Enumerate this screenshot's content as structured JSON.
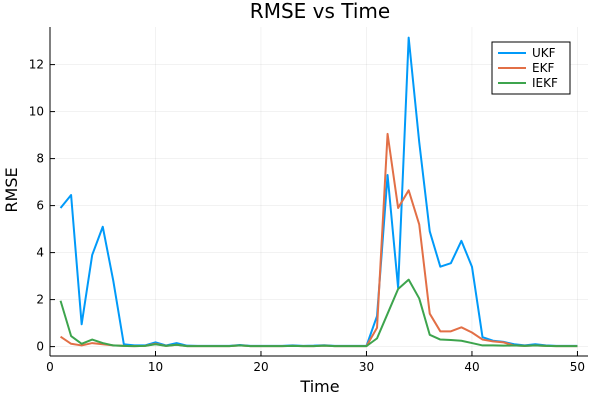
{
  "chart_data": {
    "type": "line",
    "title": "RMSE vs Time",
    "xlabel": "Time",
    "ylabel": "RMSE",
    "xlim": [
      0,
      51
    ],
    "ylim": [
      -0.4,
      13.6
    ],
    "xticks": [
      0,
      10,
      20,
      30,
      40,
      50
    ],
    "yticks": [
      0,
      2,
      4,
      6,
      8,
      10,
      12
    ],
    "grid": true,
    "legend_position": "top-right",
    "x": [
      1,
      2,
      3,
      4,
      5,
      6,
      7,
      8,
      9,
      10,
      11,
      12,
      13,
      14,
      15,
      16,
      17,
      18,
      19,
      20,
      21,
      22,
      23,
      24,
      25,
      26,
      27,
      28,
      29,
      30,
      31,
      32,
      33,
      34,
      35,
      36,
      37,
      38,
      39,
      40,
      41,
      42,
      43,
      44,
      45,
      46,
      47,
      48,
      49,
      50
    ],
    "series": [
      {
        "name": "UKF",
        "color": "#009af9",
        "values": [
          5.9,
          6.45,
          0.95,
          3.9,
          5.1,
          2.8,
          0.1,
          0.05,
          0.05,
          0.18,
          0.05,
          0.15,
          0.04,
          0.03,
          0.03,
          0.03,
          0.03,
          0.07,
          0.03,
          0.03,
          0.03,
          0.03,
          0.05,
          0.03,
          0.04,
          0.06,
          0.03,
          0.03,
          0.03,
          0.03,
          1.3,
          7.3,
          2.5,
          13.15,
          8.7,
          4.9,
          3.4,
          3.55,
          4.5,
          3.4,
          0.4,
          0.25,
          0.2,
          0.1,
          0.05,
          0.1,
          0.05,
          0.03,
          0.03,
          0.03
        ]
      },
      {
        "name": "EKF",
        "color": "#e26f46",
        "values": [
          0.42,
          0.12,
          0.05,
          0.15,
          0.1,
          0.05,
          0.03,
          0.02,
          0.03,
          0.12,
          0.03,
          0.08,
          0.02,
          0.02,
          0.02,
          0.02,
          0.02,
          0.05,
          0.02,
          0.02,
          0.02,
          0.02,
          0.03,
          0.02,
          0.02,
          0.04,
          0.02,
          0.02,
          0.02,
          0.02,
          0.8,
          9.05,
          5.9,
          6.65,
          5.2,
          1.4,
          0.65,
          0.65,
          0.82,
          0.6,
          0.3,
          0.22,
          0.18,
          0.05,
          0.03,
          0.05,
          0.03,
          0.02,
          0.02,
          0.02
        ]
      },
      {
        "name": "IEKF",
        "color": "#3da44d",
        "values": [
          1.95,
          0.45,
          0.12,
          0.3,
          0.15,
          0.05,
          0.03,
          0.02,
          0.03,
          0.1,
          0.03,
          0.08,
          0.02,
          0.02,
          0.02,
          0.02,
          0.02,
          0.05,
          0.02,
          0.02,
          0.02,
          0.02,
          0.03,
          0.02,
          0.02,
          0.04,
          0.02,
          0.02,
          0.02,
          0.02,
          0.35,
          1.4,
          2.45,
          2.85,
          2.05,
          0.5,
          0.3,
          0.28,
          0.25,
          0.15,
          0.05,
          0.05,
          0.04,
          0.05,
          0.03,
          0.05,
          0.03,
          0.02,
          0.02,
          0.02
        ]
      }
    ]
  }
}
